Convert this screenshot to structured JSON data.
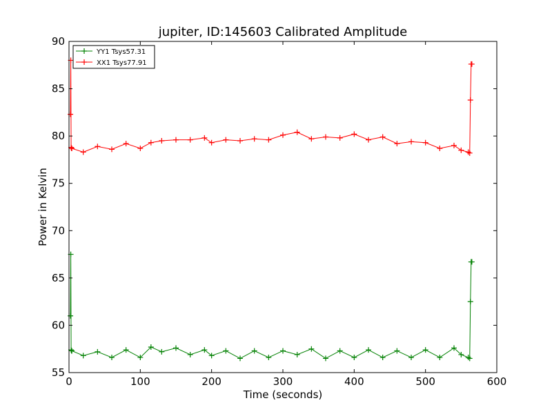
{
  "chart_data": {
    "type": "line",
    "title": "jupiter, ID:145603 Calibrated Amplitude",
    "xlabel": "Time (seconds)",
    "ylabel": "Power in Kelvin",
    "xlim": [
      0,
      600
    ],
    "ylim": [
      55,
      90
    ],
    "xticks": [
      0,
      100,
      200,
      300,
      400,
      500,
      600
    ],
    "yticks": [
      55,
      60,
      65,
      70,
      75,
      80,
      85,
      90
    ],
    "legend_position": "upper-left",
    "series": [
      {
        "name": "YY1 Tsys57.31",
        "color": "#008000",
        "marker": "+",
        "x": [
          2,
          2.5,
          3,
          3.5,
          4,
          20,
          40,
          60,
          80,
          100,
          115,
          130,
          150,
          170,
          190,
          200,
          220,
          240,
          260,
          280,
          300,
          320,
          340,
          360,
          380,
          400,
          420,
          440,
          460,
          480,
          500,
          520,
          540,
          550,
          560,
          562,
          563,
          564,
          565
        ],
        "y": [
          61.0,
          67.5,
          57.4,
          57.3,
          57.3,
          56.8,
          57.2,
          56.6,
          57.4,
          56.6,
          57.7,
          57.2,
          57.6,
          56.9,
          57.4,
          56.8,
          57.3,
          56.5,
          57.3,
          56.6,
          57.3,
          56.9,
          57.5,
          56.5,
          57.3,
          56.6,
          57.4,
          56.6,
          57.3,
          56.6,
          57.4,
          56.6,
          57.6,
          56.9,
          56.6,
          56.5,
          62.5,
          66.7,
          66.7
        ]
      },
      {
        "name": "XX1 Tsys77.91",
        "color": "#ff0000",
        "marker": "+",
        "x": [
          2,
          2.5,
          3,
          3.5,
          4,
          20,
          40,
          60,
          80,
          100,
          115,
          130,
          150,
          170,
          190,
          200,
          220,
          240,
          260,
          280,
          300,
          320,
          340,
          360,
          380,
          400,
          420,
          440,
          460,
          480,
          500,
          520,
          540,
          550,
          560,
          562,
          563,
          564,
          565
        ],
        "y": [
          82.3,
          88.0,
          78.8,
          78.7,
          78.7,
          78.3,
          78.9,
          78.6,
          79.2,
          78.7,
          79.3,
          79.5,
          79.6,
          79.6,
          79.8,
          79.3,
          79.6,
          79.5,
          79.7,
          79.6,
          80.1,
          80.4,
          79.7,
          79.9,
          79.8,
          80.2,
          79.6,
          79.9,
          79.2,
          79.4,
          79.3,
          78.7,
          79.0,
          78.5,
          78.3,
          78.2,
          83.8,
          87.6,
          87.6
        ]
      }
    ]
  }
}
